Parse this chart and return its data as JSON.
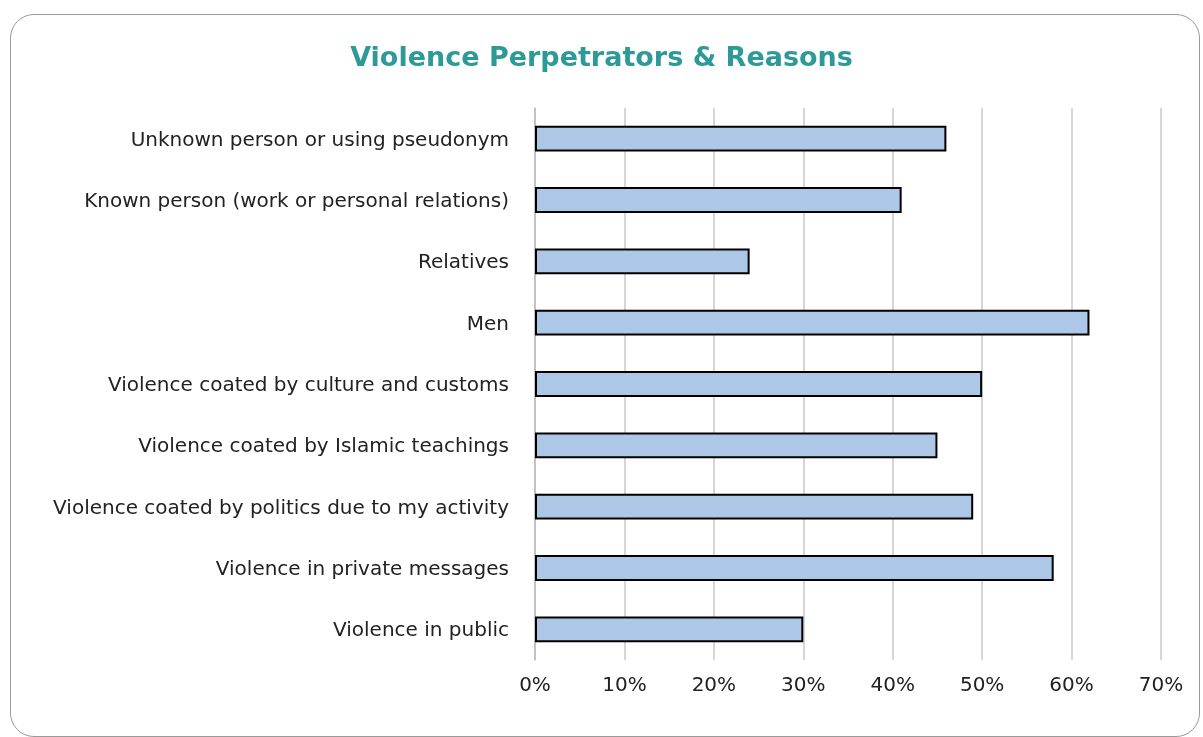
{
  "chart_data": {
    "type": "bar",
    "orientation": "horizontal",
    "title": "Violence Perpetrators & Reasons",
    "categories": [
      "Unknown person or using pseudonym",
      "Known person (work or personal relations)",
      "Relatives",
      "Men",
      "Violence coated by culture and customs",
      "Violence coated by Islamic teachings",
      "Violence coated by politics due to my activity",
      "Violence in private messages",
      "Violence in public"
    ],
    "values": [
      46,
      41,
      24,
      62,
      50,
      45,
      49,
      58,
      30
    ],
    "color": "#adc8e6",
    "xlim": [
      0,
      70
    ],
    "xticks": [
      {
        "value": 0,
        "label": "0%"
      },
      {
        "value": 10,
        "label": "10%"
      },
      {
        "value": 20,
        "label": "20%"
      },
      {
        "value": 30,
        "label": "30%"
      },
      {
        "value": 40,
        "label": "40%"
      },
      {
        "value": 50,
        "label": "50%"
      },
      {
        "value": 60,
        "label": "60%"
      },
      {
        "value": 70,
        "label": "70%"
      }
    ],
    "grid": "x"
  }
}
